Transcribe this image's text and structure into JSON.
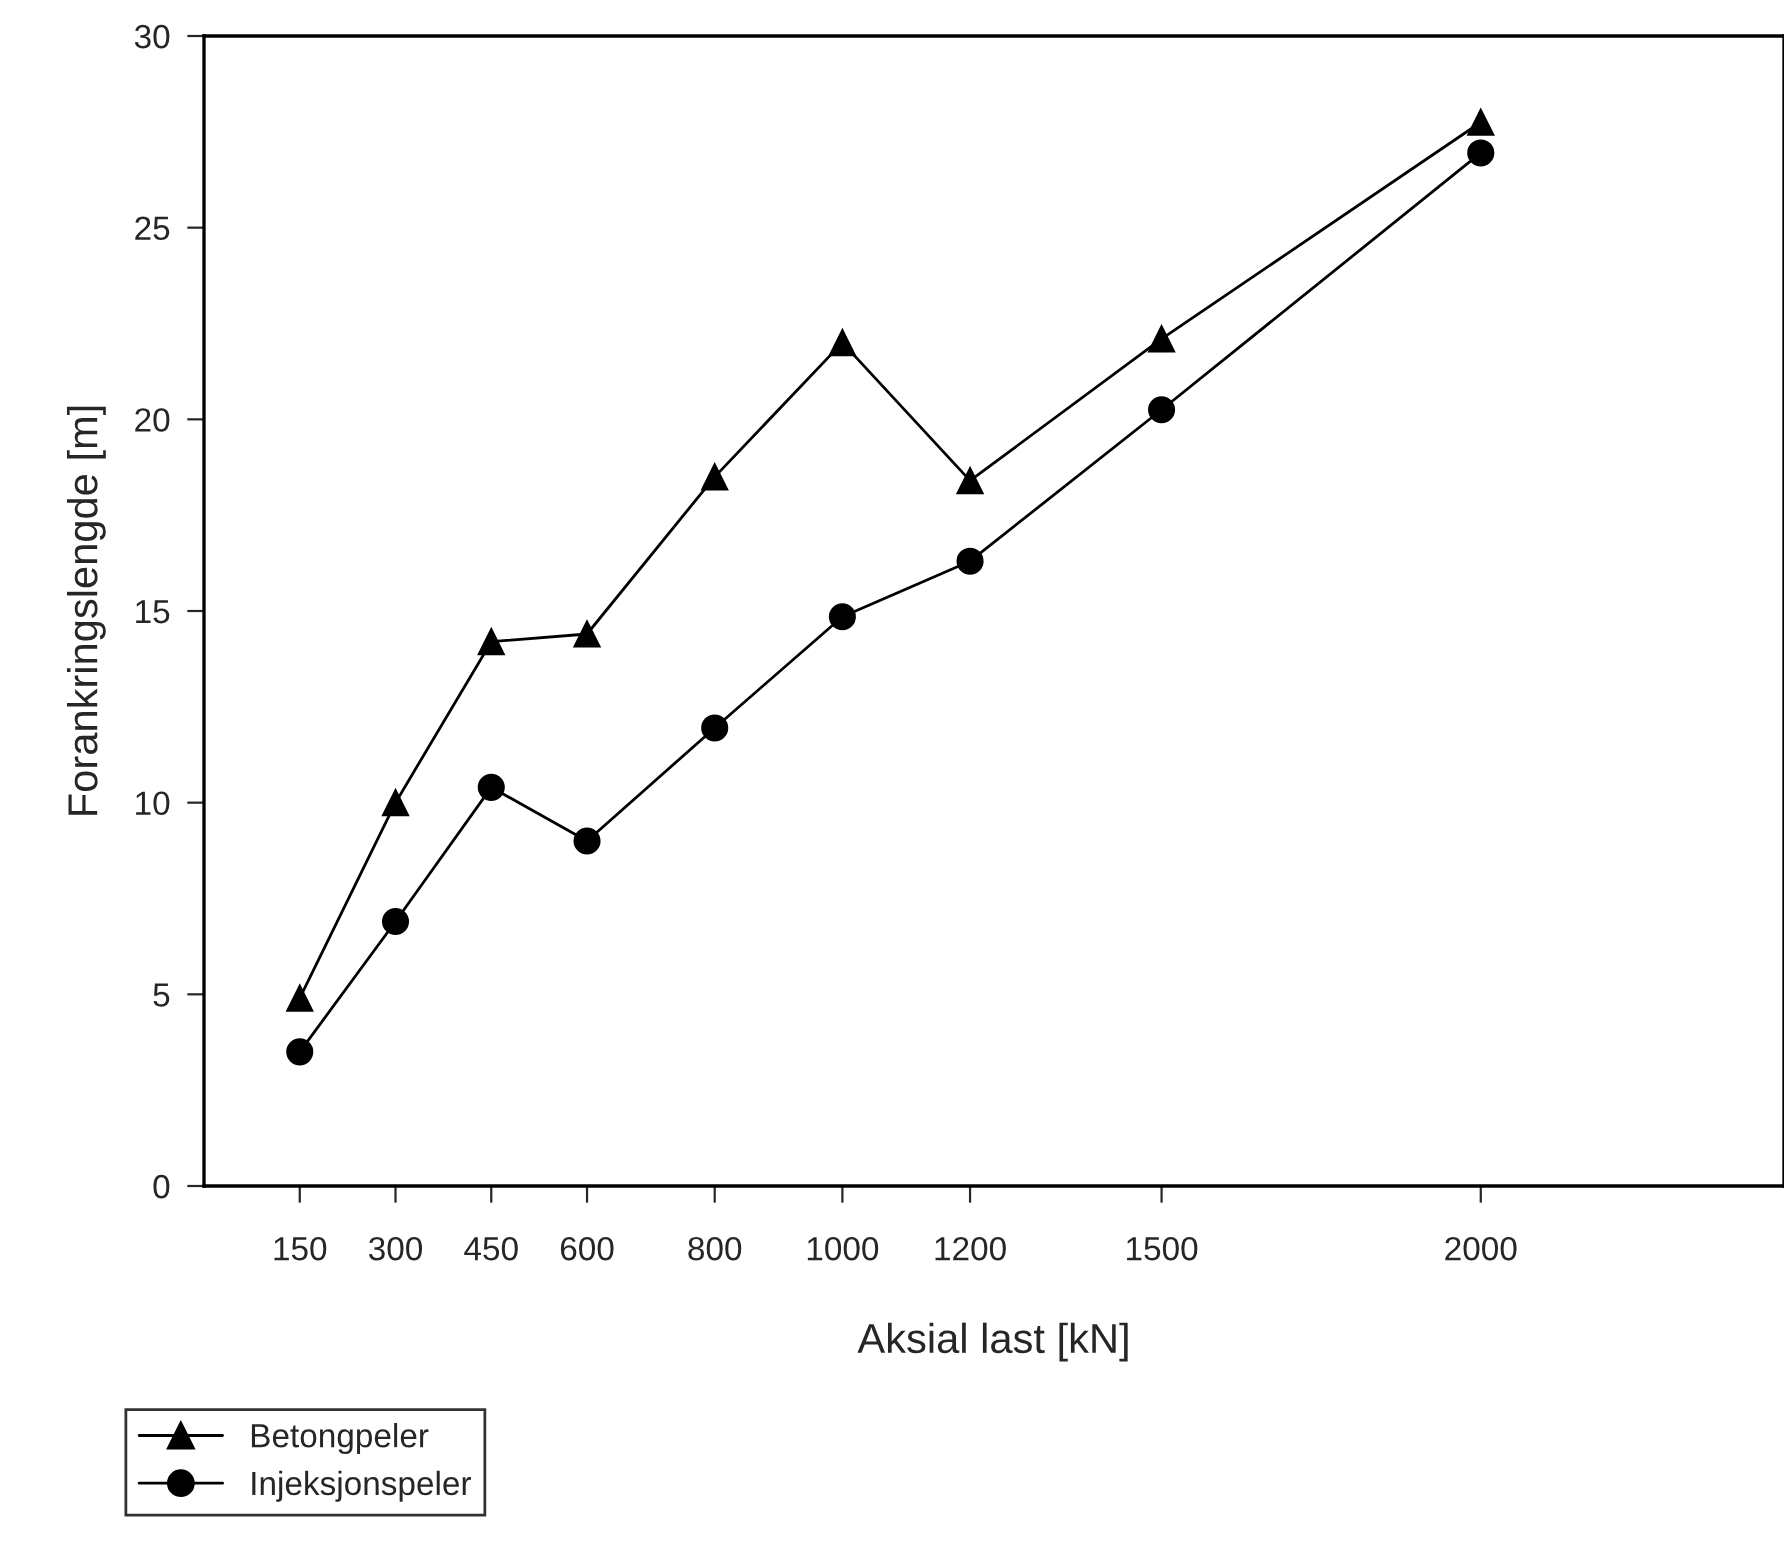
{
  "chart_data": {
    "type": "line",
    "xlabel": "Aksial last [kN]",
    "ylabel": "Forankringslengde [m]",
    "x": [
      150,
      300,
      450,
      600,
      800,
      1000,
      1200,
      1500,
      2000
    ],
    "series": [
      {
        "name": "Betongpeler",
        "color": "#000000",
        "marker": "triangle",
        "values": [
          4.9,
          10.0,
          14.2,
          14.4,
          18.5,
          22.0,
          18.4,
          22.1,
          27.75
        ]
      },
      {
        "name": "Injeksjonspeler",
        "color": "#000000",
        "marker": "circle",
        "values": [
          3.5,
          6.9,
          10.4,
          9.0,
          11.95,
          14.85,
          16.3,
          20.25,
          26.95
        ]
      }
    ],
    "xlim": [
      0,
      2475
    ],
    "xticks": [
      150,
      300,
      450,
      600,
      800,
      1000,
      1200,
      1500,
      2000
    ],
    "ylim": [
      0,
      30
    ],
    "yticks": [
      0,
      5,
      10,
      15,
      20,
      25,
      30
    ],
    "grid": false,
    "legend": "bottom left",
    "line_style": "solid"
  }
}
